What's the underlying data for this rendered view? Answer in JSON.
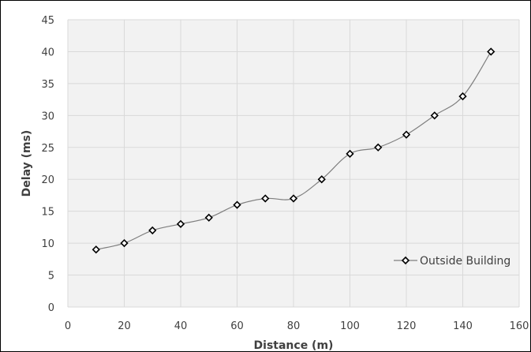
{
  "chart_data": {
    "type": "line",
    "title": "",
    "xlabel": "Distance (m)",
    "ylabel": "Delay (ms)",
    "xlim": [
      0,
      160
    ],
    "ylim": [
      0,
      45
    ],
    "xticks": [
      0,
      20,
      40,
      60,
      80,
      100,
      120,
      140,
      160
    ],
    "yticks": [
      0,
      5,
      10,
      15,
      20,
      25,
      30,
      35,
      40,
      45
    ],
    "grid": true,
    "legend_position": "bottom-right",
    "colors": {
      "line": "#7f7f7f",
      "marker_stroke": "#000000",
      "marker_fill": "#ffffff",
      "plot_background": "#f2f2f2",
      "grid": "#d9d9d9",
      "text": "#404040"
    },
    "series": [
      {
        "name": "Outside Building",
        "marker": "diamond",
        "x": [
          10,
          20,
          30,
          40,
          50,
          60,
          70,
          80,
          90,
          100,
          110,
          120,
          130,
          140,
          150
        ],
        "y": [
          9,
          10,
          12,
          13,
          14,
          16,
          17,
          17,
          20,
          24,
          25,
          27,
          30,
          33,
          40
        ]
      }
    ]
  }
}
